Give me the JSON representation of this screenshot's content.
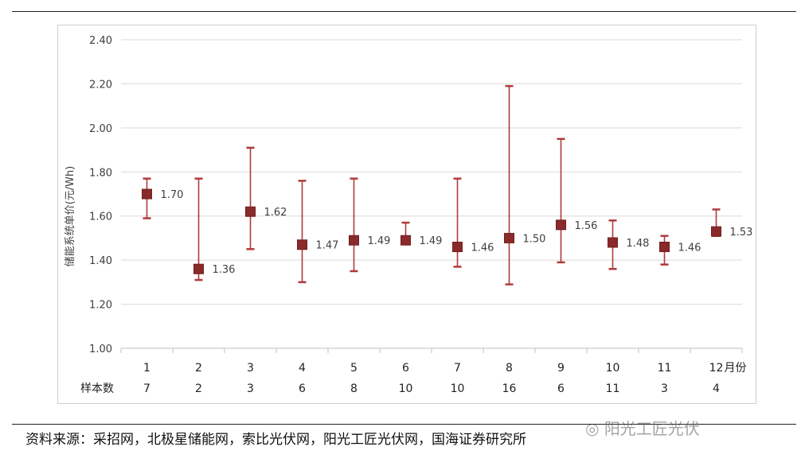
{
  "chart_data": {
    "type": "error-bar",
    "ylabel": "储能系统单价(元/Wh)",
    "ylim": [
      1.0,
      2.4
    ],
    "yticks": [
      "1.00",
      "1.20",
      "1.40",
      "1.60",
      "1.80",
      "2.00",
      "2.20",
      "2.40"
    ],
    "x_unit_label": "月份",
    "sample_row_label": "样本数",
    "categories": [
      "1",
      "2",
      "3",
      "4",
      "5",
      "6",
      "7",
      "8",
      "9",
      "10",
      "11",
      "12"
    ],
    "values": [
      1.7,
      1.36,
      1.62,
      1.47,
      1.49,
      1.49,
      1.46,
      1.5,
      1.56,
      1.48,
      1.46,
      1.53
    ],
    "value_labels": [
      "1.70",
      "1.36",
      "1.62",
      "1.47",
      "1.49",
      "1.49",
      "1.46",
      "1.50",
      "1.56",
      "1.48",
      "1.46",
      "1.53"
    ],
    "max": [
      1.77,
      1.77,
      1.91,
      1.76,
      1.77,
      1.57,
      1.77,
      2.19,
      1.95,
      1.58,
      1.51,
      1.63
    ],
    "min": [
      1.59,
      1.31,
      1.45,
      1.3,
      1.35,
      1.49,
      1.37,
      1.29,
      1.39,
      1.36,
      1.38,
      1.51
    ],
    "samples": [
      "7",
      "2",
      "3",
      "6",
      "8",
      "10",
      "10",
      "16",
      "6",
      "11",
      "3",
      "4"
    ],
    "colors": {
      "marker": "#8b2a2a",
      "bar": "#b03a3a",
      "grid": "#d9d9d9",
      "axis": "#bfbfbf"
    },
    "grid": true
  },
  "source": "资料来源：采招网，北极星储能网，索比光伏网，阳光工匠光伏网，国海证券研究所",
  "watermark": "阳光工匠光伏"
}
